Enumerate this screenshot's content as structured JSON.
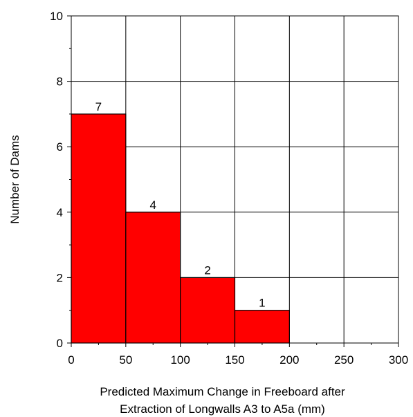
{
  "chart_data": {
    "type": "bar",
    "bins": [
      [
        0,
        50
      ],
      [
        50,
        100
      ],
      [
        100,
        150
      ],
      [
        150,
        200
      ]
    ],
    "values": [
      7,
      4,
      2,
      1
    ],
    "data_labels": [
      "7",
      "4",
      "2",
      "1"
    ],
    "xlabel_line1": "Predicted Maximum Change in Freeboard after",
    "xlabel_line2": "Extraction of Longwalls A3 to A5a (mm)",
    "ylabel": "Number of Dams",
    "xlim": [
      0,
      300
    ],
    "ylim": [
      0,
      10
    ],
    "xticks": [
      0,
      50,
      100,
      150,
      200,
      250,
      300
    ],
    "yticks": [
      0,
      2,
      4,
      6,
      8,
      10
    ],
    "grid": true,
    "bar_color": "#ff0000"
  }
}
